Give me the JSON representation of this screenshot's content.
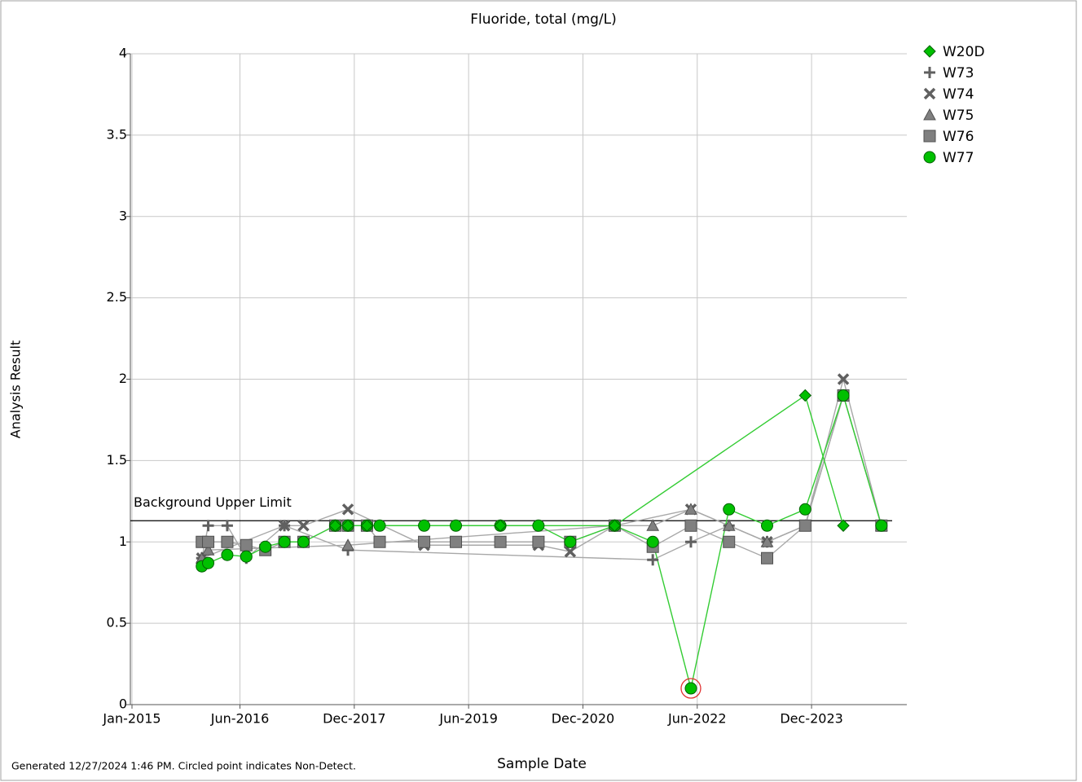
{
  "chart_data": {
    "type": "line",
    "title": "Fluoride, total (mg/L)",
    "x_label": "Sample Date",
    "y_label": "Analysis Result",
    "footnote": "Generated 12/27/2024 1:46 PM. Circled point indicates Non-Detect.",
    "xlim": [
      "2015-01",
      "2025-03"
    ],
    "xticks": [
      {
        "value": "2015-01",
        "label": "Jan-2015"
      },
      {
        "value": "2016-06",
        "label": "Jun-2016"
      },
      {
        "value": "2017-12",
        "label": "Dec-2017"
      },
      {
        "value": "2019-06",
        "label": "Jun-2019"
      },
      {
        "value": "2020-12",
        "label": "Dec-2020"
      },
      {
        "value": "2022-06",
        "label": "Jun-2022"
      },
      {
        "value": "2023-12",
        "label": "Dec-2023"
      }
    ],
    "ylim": [
      0,
      4
    ],
    "yticks": [
      0,
      0.5,
      1,
      1.5,
      2,
      2.5,
      3,
      3.5,
      4
    ],
    "grid": true,
    "legend": "top-right",
    "reference_lines": [
      {
        "label": "Background Upper Limit",
        "value": 1.13,
        "color": "#000000"
      }
    ],
    "series": [
      {
        "name": "W20D",
        "color": "#00c000",
        "marker": "diamond",
        "x": [
          "2017-09",
          "2017-11",
          "2018-02",
          "2019-11",
          "2021-05",
          "2023-11",
          "2024-05"
        ],
        "values": [
          1.1,
          1.1,
          1.1,
          1.1,
          1.1,
          1.9,
          1.1
        ]
      },
      {
        "name": "W73",
        "color": "#808080",
        "marker": "plus",
        "x": [
          "2015-12",
          "2016-01",
          "2016-04",
          "2016-07",
          "2017-01",
          "2017-11",
          "2021-11",
          "2022-05",
          "2022-11",
          "2023-05",
          "2023-11",
          "2024-05"
        ],
        "values": [
          0.9,
          1.1,
          1.1,
          0.9,
          1.1,
          0.95,
          0.89,
          1.0,
          1.1,
          1.0,
          1.1,
          1.9
        ]
      },
      {
        "name": "W74",
        "color": "#808080",
        "marker": "x",
        "x": [
          "2015-12",
          "2017-01",
          "2017-04",
          "2017-11",
          "2018-11",
          "2020-05",
          "2020-10",
          "2021-05",
          "2022-05",
          "2023-05",
          "2023-11",
          "2024-05",
          "2024-11"
        ],
        "values": [
          0.9,
          1.1,
          1.1,
          1.2,
          0.98,
          0.98,
          0.94,
          1.1,
          1.2,
          1.0,
          1.1,
          2.0,
          1.1
        ]
      },
      {
        "name": "W75",
        "color": "#808080",
        "marker": "triangle",
        "x": [
          "2015-12",
          "2016-01",
          "2017-11",
          "2021-05",
          "2021-11",
          "2022-05",
          "2022-11",
          "2023-05",
          "2023-11",
          "2024-05",
          "2024-11"
        ],
        "values": [
          0.9,
          0.95,
          0.98,
          1.1,
          1.1,
          1.2,
          1.1,
          1.0,
          1.1,
          1.9,
          1.1
        ]
      },
      {
        "name": "W76",
        "color": "#808080",
        "marker": "square",
        "x": [
          "2015-12",
          "2016-01",
          "2016-04",
          "2016-07",
          "2016-10",
          "2017-01",
          "2017-04",
          "2017-09",
          "2017-11",
          "2018-02",
          "2018-04",
          "2018-11",
          "2019-04",
          "2019-11",
          "2020-05",
          "2020-10",
          "2021-05",
          "2021-11",
          "2022-05",
          "2022-11",
          "2023-05",
          "2023-11",
          "2024-05",
          "2024-11"
        ],
        "values": [
          1.0,
          1.0,
          1.0,
          0.98,
          0.95,
          1.0,
          1.0,
          1.1,
          1.1,
          1.1,
          1.0,
          1.0,
          1.0,
          1.0,
          1.0,
          1.0,
          1.1,
          0.97,
          1.1,
          1.0,
          0.9,
          1.1,
          1.9,
          1.1
        ]
      },
      {
        "name": "W77",
        "color": "#00c000",
        "marker": "circle",
        "x": [
          "2015-12",
          "2016-01",
          "2016-04",
          "2016-07",
          "2016-10",
          "2017-01",
          "2017-04",
          "2017-09",
          "2017-11",
          "2018-02",
          "2018-04",
          "2018-11",
          "2019-04",
          "2019-11",
          "2020-05",
          "2020-10",
          "2021-05",
          "2021-11",
          "2022-05",
          "2022-11",
          "2023-05",
          "2023-11",
          "2024-05",
          "2024-11"
        ],
        "values": [
          0.85,
          0.87,
          0.92,
          0.91,
          0.97,
          1.0,
          1.0,
          1.1,
          1.1,
          1.1,
          1.1,
          1.1,
          1.1,
          1.1,
          1.1,
          1.0,
          1.1,
          1.0,
          0.1,
          1.2,
          1.1,
          1.2,
          1.9,
          1.1
        ],
        "non_detect": [
          false,
          false,
          false,
          false,
          false,
          false,
          false,
          false,
          false,
          false,
          false,
          false,
          false,
          false,
          false,
          false,
          false,
          false,
          true,
          false,
          false,
          false,
          false,
          false
        ]
      }
    ]
  }
}
